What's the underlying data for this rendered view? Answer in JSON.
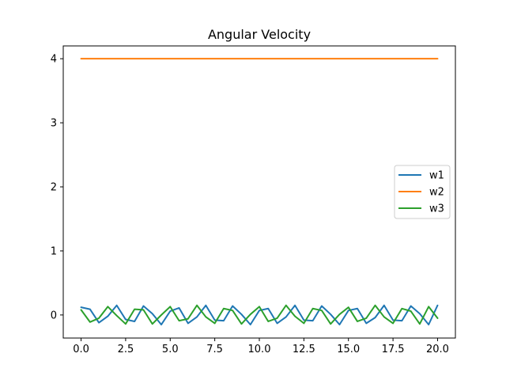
{
  "chart_data": {
    "type": "line",
    "title": "Angular Velocity",
    "xlabel": "",
    "ylabel": "",
    "xlim": [
      -1.0,
      21.0
    ],
    "ylim": [
      -0.36,
      4.2
    ],
    "xticks": [
      0.0,
      2.5,
      5.0,
      7.5,
      10.0,
      12.5,
      15.0,
      17.5,
      20.0
    ],
    "xtick_labels": [
      "0.0",
      "2.5",
      "5.0",
      "7.5",
      "10.0",
      "12.5",
      "15.0",
      "17.5",
      "20.0"
    ],
    "yticks": [
      0,
      1,
      2,
      3,
      4
    ],
    "ytick_labels": [
      "0",
      "1",
      "2",
      "3",
      "4"
    ],
    "grid": false,
    "legend_position": "center-right",
    "x": [
      0,
      0.5,
      1.0,
      1.5,
      2.0,
      2.5,
      3.0,
      3.5,
      4.0,
      4.5,
      5.0,
      5.5,
      6.0,
      6.5,
      7.0,
      7.5,
      8.0,
      8.5,
      9.0,
      9.5,
      10.0,
      10.5,
      11.0,
      11.5,
      12.0,
      12.5,
      13.0,
      13.5,
      14.0,
      14.5,
      15.0,
      15.5,
      16.0,
      16.5,
      17.0,
      17.5,
      18.0,
      18.5,
      19.0,
      19.5,
      20.0
    ],
    "series": [
      {
        "name": "w1",
        "color": "#1f77b4",
        "values": [
          0.12,
          0.09,
          -0.12,
          -0.02,
          0.15,
          -0.07,
          -0.1,
          0.14,
          0.02,
          -0.15,
          0.06,
          0.11,
          -0.13,
          -0.03,
          0.15,
          -0.08,
          -0.09,
          0.14,
          0.01,
          -0.15,
          0.07,
          0.1,
          -0.13,
          -0.03,
          0.15,
          -0.08,
          -0.09,
          0.14,
          0.01,
          -0.15,
          0.07,
          0.1,
          -0.13,
          -0.04,
          0.15,
          -0.08,
          -0.09,
          0.14,
          0.02,
          -0.15,
          0.15
        ]
      },
      {
        "name": "w2",
        "color": "#ff7f0e",
        "values": [
          4.0,
          4.0,
          4.0,
          4.0,
          4.0,
          4.0,
          4.0,
          4.0,
          4.0,
          4.0,
          4.0,
          4.0,
          4.0,
          4.0,
          4.0,
          4.0,
          4.0,
          4.0,
          4.0,
          4.0,
          4.0,
          4.0,
          4.0,
          4.0,
          4.0,
          4.0,
          4.0,
          4.0,
          4.0,
          4.0,
          4.0,
          4.0,
          4.0,
          4.0,
          4.0,
          4.0,
          4.0,
          4.0,
          4.0,
          4.0,
          4.0
        ]
      },
      {
        "name": "w3",
        "color": "#2ca02c",
        "values": [
          0.08,
          -0.11,
          -0.05,
          0.13,
          -0.01,
          -0.14,
          0.09,
          0.08,
          -0.14,
          0.0,
          0.13,
          -0.09,
          -0.06,
          0.15,
          -0.03,
          -0.13,
          0.1,
          0.07,
          -0.14,
          0.01,
          0.13,
          -0.1,
          -0.05,
          0.15,
          -0.02,
          -0.13,
          0.1,
          0.07,
          -0.14,
          0.01,
          0.12,
          -0.1,
          -0.05,
          0.15,
          -0.03,
          -0.13,
          0.1,
          0.06,
          -0.14,
          0.13,
          -0.05
        ]
      }
    ]
  }
}
